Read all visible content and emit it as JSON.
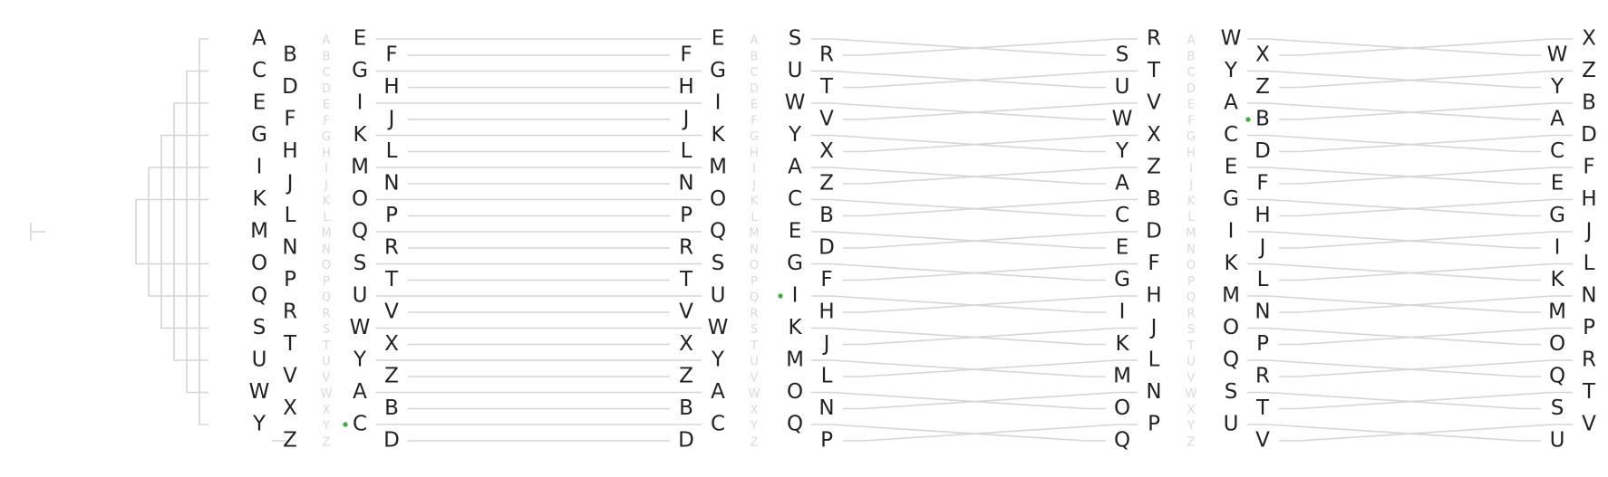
{
  "colors": {
    "text": "#222222",
    "ghost": "#dadada",
    "line": "#d6d6d6",
    "marker": "#2db52d"
  },
  "tree": {
    "left": [
      "A",
      "C",
      "E",
      "G",
      "I",
      "K",
      "M",
      "O",
      "Q",
      "S",
      "U",
      "W",
      "Y"
    ],
    "right": [
      "B",
      "D",
      "F",
      "H",
      "J",
      "L",
      "N",
      "P",
      "R",
      "T",
      "V",
      "X",
      "Z"
    ],
    "ghost": [
      "A",
      "B",
      "C",
      "D",
      "E",
      "F",
      "G",
      "H",
      "I",
      "J",
      "K",
      "L",
      "M",
      "N",
      "O",
      "P",
      "Q",
      "R",
      "S",
      "T",
      "U",
      "V",
      "W",
      "X",
      "Y",
      "Z"
    ]
  },
  "stages": [
    {
      "lower": [
        "E",
        "G",
        "I",
        "K",
        "M",
        "O",
        "Q",
        "S",
        "U",
        "W",
        "Y",
        "A",
        "C"
      ],
      "upper": [
        "F",
        "H",
        "J",
        "L",
        "N",
        "P",
        "R",
        "T",
        "V",
        "X",
        "Z",
        "B",
        "D"
      ],
      "ghost": [
        "A",
        "B",
        "C",
        "D",
        "E",
        "F",
        "G",
        "H",
        "I",
        "J",
        "K",
        "L",
        "M",
        "N",
        "O",
        "P",
        "Q",
        "R",
        "S",
        "T",
        "U",
        "V",
        "W",
        "X",
        "Y",
        "Z"
      ],
      "marker": "C"
    },
    {
      "lower": [
        "E",
        "G",
        "I",
        "K",
        "M",
        "O",
        "Q",
        "S",
        "U",
        "W",
        "Y",
        "A",
        "C"
      ],
      "upper": [
        "F",
        "H",
        "J",
        "L",
        "N",
        "P",
        "R",
        "T",
        "V",
        "X",
        "Z",
        "B",
        "D"
      ],
      "ghost": [
        "A",
        "B",
        "C",
        "D",
        "E",
        "F",
        "G",
        "H",
        "I",
        "J",
        "K",
        "L",
        "M",
        "N",
        "O",
        "P",
        "Q",
        "R",
        "S",
        "T",
        "U",
        "V",
        "W",
        "X",
        "Y",
        "Z"
      ],
      "marker": ""
    },
    {
      "lower": [
        "S",
        "U",
        "W",
        "Y",
        "A",
        "C",
        "E",
        "G",
        "I",
        "K",
        "M",
        "O",
        "Q"
      ],
      "upper": [
        "R",
        "T",
        "V",
        "X",
        "Z",
        "B",
        "D",
        "F",
        "H",
        "J",
        "L",
        "N",
        "P"
      ],
      "ghost": [],
      "marker": "I"
    },
    {
      "lower": [
        "R",
        "T",
        "V",
        "X",
        "Z",
        "B",
        "D",
        "F",
        "H",
        "J",
        "L",
        "N",
        "P"
      ],
      "upper": [
        "S",
        "U",
        "W",
        "Y",
        "A",
        "C",
        "E",
        "G",
        "I",
        "K",
        "M",
        "O",
        "Q"
      ],
      "ghost": [
        "A",
        "B",
        "C",
        "D",
        "E",
        "F",
        "G",
        "H",
        "I",
        "J",
        "K",
        "L",
        "M",
        "N",
        "O",
        "P",
        "Q",
        "R",
        "S",
        "T",
        "U",
        "V",
        "W",
        "X",
        "Y",
        "Z"
      ],
      "marker": ""
    },
    {
      "lower": [
        "W",
        "Y",
        "A",
        "C",
        "E",
        "G",
        "I",
        "K",
        "M",
        "O",
        "Q",
        "S",
        "U"
      ],
      "upper": [
        "X",
        "Z",
        "B",
        "D",
        "F",
        "H",
        "J",
        "L",
        "N",
        "P",
        "R",
        "T",
        "V"
      ],
      "ghost": [],
      "marker": "B"
    },
    {
      "lower": [
        "X",
        "Z",
        "B",
        "D",
        "F",
        "H",
        "J",
        "L",
        "N",
        "P",
        "R",
        "T",
        "V"
      ],
      "upper": [
        "W",
        "Y",
        "A",
        "C",
        "E",
        "G",
        "I",
        "K",
        "M",
        "O",
        "Q",
        "S",
        "U"
      ],
      "ghost": [],
      "marker": ""
    }
  ]
}
